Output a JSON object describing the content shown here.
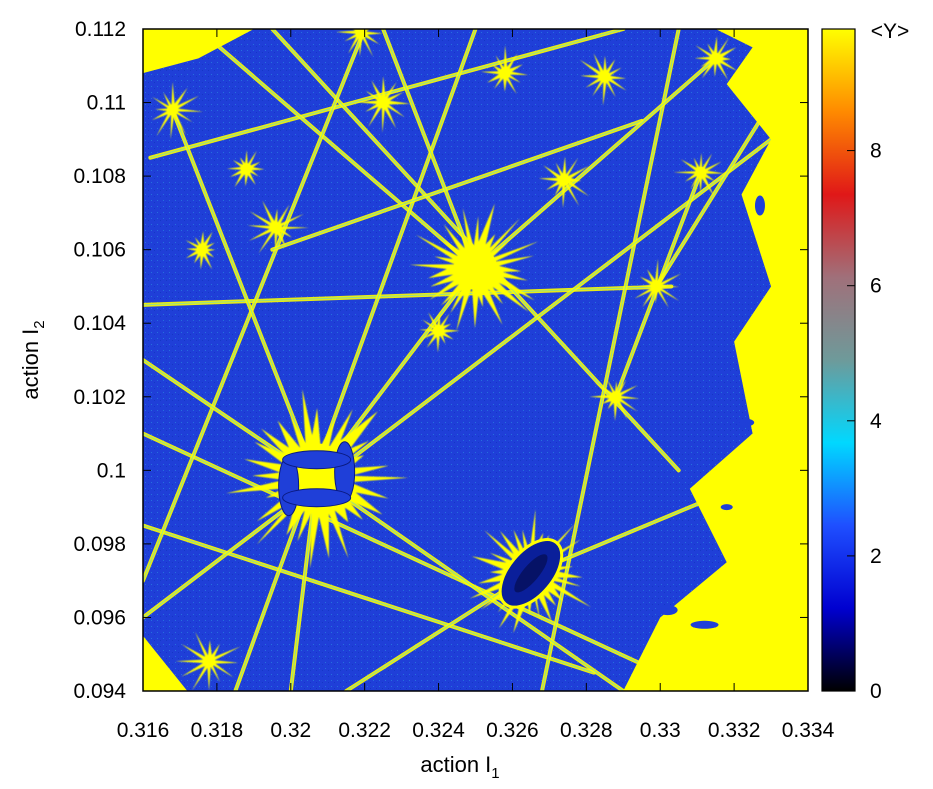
{
  "chart_data": {
    "type": "heatmap",
    "title": "",
    "xlabel": "action I",
    "xlabel_sub": "1",
    "ylabel": "action I",
    "ylabel_sub": "2",
    "xlim": [
      0.316,
      0.334
    ],
    "ylim": [
      0.094,
      0.112
    ],
    "x_ticks": [
      "0.316",
      "0.318",
      "0.32",
      "0.322",
      "0.324",
      "0.326",
      "0.328",
      "0.33",
      "0.332",
      "0.334"
    ],
    "y_ticks": [
      "0.094",
      "0.096",
      "0.098",
      "0.1",
      "0.102",
      "0.104",
      "0.106",
      "0.108",
      "0.11",
      "0.112"
    ],
    "colorbar": {
      "label": "<Y>",
      "range": [
        0,
        9.8
      ],
      "ticks": [
        "0",
        "2",
        "4",
        "6",
        "8"
      ],
      "palette": [
        "#000000",
        "#0000d0",
        "#1f4fff",
        "#00d8ff",
        "#6e9a9a",
        "#a0707a",
        "#e01818",
        "#ff8a00",
        "#ffff00"
      ]
    },
    "background_color": "#1f3fd8",
    "resonance_color": "#ffff00",
    "resonance_centers": [
      {
        "x": 0.3207,
        "y": 0.0998
      },
      {
        "x": 0.325,
        "y": 0.1055
      },
      {
        "x": 0.3265,
        "y": 0.0972
      },
      {
        "x": 0.3178,
        "y": 0.0948
      },
      {
        "x": 0.3188,
        "y": 0.1082
      },
      {
        "x": 0.3196,
        "y": 0.1066
      },
      {
        "x": 0.3219,
        "y": 0.1119
      },
      {
        "x": 0.3225,
        "y": 0.11
      },
      {
        "x": 0.3285,
        "y": 0.1107
      },
      {
        "x": 0.3274,
        "y": 0.1079
      },
      {
        "x": 0.3299,
        "y": 0.105
      },
      {
        "x": 0.3288,
        "y": 0.102
      },
      {
        "x": 0.3311,
        "y": 0.1081
      },
      {
        "x": 0.3168,
        "y": 0.1098
      },
      {
        "x": 0.3176,
        "y": 0.106
      },
      {
        "x": 0.3315,
        "y": 0.1112
      },
      {
        "x": 0.324,
        "y": 0.1038
      },
      {
        "x": 0.3258,
        "y": 0.1108
      }
    ],
    "resonance_lines": [
      {
        "from": [
          0.316,
          0.0985
        ],
        "to": [
          0.3282,
          0.0945
        ]
      },
      {
        "from": [
          0.316,
          0.101
        ],
        "to": [
          0.33,
          0.0945
        ]
      },
      {
        "from": [
          0.316,
          0.1045
        ],
        "to": [
          0.3303,
          0.105
        ]
      },
      {
        "from": [
          0.3162,
          0.1085
        ],
        "to": [
          0.329,
          0.112
        ]
      },
      {
        "from": [
          0.3175,
          0.112
        ],
        "to": [
          0.325,
          0.1055
        ]
      },
      {
        "from": [
          0.3195,
          0.112
        ],
        "to": [
          0.3305,
          0.1
        ]
      },
      {
        "from": [
          0.316,
          0.097
        ],
        "to": [
          0.322,
          0.112
        ]
      },
      {
        "from": [
          0.3185,
          0.094
        ],
        "to": [
          0.325,
          0.112
        ]
      },
      {
        "from": [
          0.3268,
          0.094
        ],
        "to": [
          0.3305,
          0.112
        ]
      },
      {
        "from": [
          0.316,
          0.096
        ],
        "to": [
          0.333,
          0.109
        ]
      },
      {
        "from": [
          0.3195,
          0.106
        ],
        "to": [
          0.3295,
          0.1095
        ]
      },
      {
        "from": [
          0.3207,
          0.0998
        ],
        "to": [
          0.325,
          0.1055
        ]
      },
      {
        "from": [
          0.325,
          0.1055
        ],
        "to": [
          0.3315,
          0.1112
        ]
      },
      {
        "from": [
          0.3215,
          0.094
        ],
        "to": [
          0.3265,
          0.0972
        ]
      },
      {
        "from": [
          0.3265,
          0.0972
        ],
        "to": [
          0.332,
          0.0995
        ]
      },
      {
        "from": [
          0.316,
          0.103
        ],
        "to": [
          0.3207,
          0.0998
        ]
      },
      {
        "from": [
          0.3207,
          0.0998
        ],
        "to": [
          0.3168,
          0.1098
        ]
      },
      {
        "from": [
          0.3207,
          0.0998
        ],
        "to": [
          0.329,
          0.094
        ]
      },
      {
        "from": [
          0.3207,
          0.0998
        ],
        "to": [
          0.32,
          0.094
        ]
      },
      {
        "from": [
          0.325,
          0.1055
        ],
        "to": [
          0.3225,
          0.112
        ]
      },
      {
        "from": [
          0.3288,
          0.102
        ],
        "to": [
          0.3311,
          0.1081
        ]
      },
      {
        "from": [
          0.3299,
          0.105
        ],
        "to": [
          0.333,
          0.11
        ]
      }
    ]
  }
}
